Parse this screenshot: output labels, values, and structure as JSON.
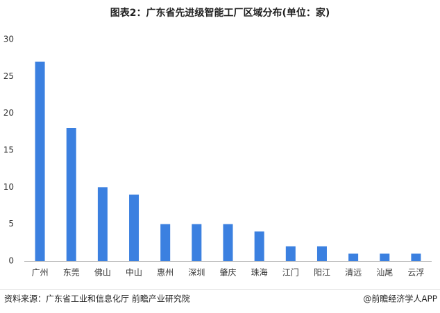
{
  "chart_data": {
    "type": "bar",
    "title": "图表2：广东省先进级智能工厂区域分布(单位：家)",
    "categories": [
      "广州",
      "东莞",
      "佛山",
      "中山",
      "惠州",
      "深圳",
      "肇庆",
      "珠海",
      "江门",
      "阳江",
      "清远",
      "汕尾",
      "云浮"
    ],
    "values": [
      27,
      18,
      10,
      9,
      5,
      5,
      5,
      4,
      2,
      2,
      1,
      1,
      1
    ],
    "color": "#3b80e0",
    "ylim": [
      0,
      30
    ],
    "yticks": [
      0,
      5,
      10,
      15,
      20,
      25,
      30
    ],
    "grid": false,
    "source": "资料来源：广东省工业和信息化厅 前瞻产业研究院",
    "credit": "@前瞻经济学人APP"
  }
}
